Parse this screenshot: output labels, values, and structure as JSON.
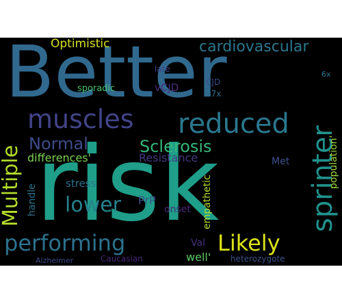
{
  "colors": {
    "background": "#000000",
    "page": "#ffffff"
  },
  "words": {
    "better": {
      "text": "Better",
      "color": "#31698e"
    },
    "risk": {
      "text": "risk",
      "color": "#1f9e89"
    },
    "optimistic": {
      "text": "Optimistic",
      "color": "#d5e21a"
    },
    "cardiovascular": {
      "text": "cardiovascular",
      "color": "#2a778e"
    },
    "muscles": {
      "text": "muscles",
      "color": "#414487"
    },
    "reduced": {
      "text": "reduced",
      "color": "#2a778e"
    },
    "sprinter": {
      "text": "sprinter",
      "color": "#21918c"
    },
    "multiple": {
      "text": "Multiple",
      "color": "#b5de2b"
    },
    "normal": {
      "text": "Normal",
      "color": "#3e4c8a"
    },
    "sclerosis": {
      "text": "Sclerosis",
      "color": "#35b779"
    },
    "differences": {
      "text": "differences'",
      "color": "#7ad151"
    },
    "resistance": {
      "text": "Resistance",
      "color": "#443983"
    },
    "met": {
      "text": "Met",
      "color": "#3b528b"
    },
    "population": {
      "text": "population'",
      "color": "#a2da37"
    },
    "lower": {
      "text": "lower",
      "color": "#26828e"
    },
    "stress": {
      "text": "stress",
      "color": "#2c728e"
    },
    "handle": {
      "text": "handle",
      "color": "#2c728e"
    },
    "prp": {
      "text": "PrP",
      "color": "#3b528b"
    },
    "onset": {
      "text": "onset",
      "color": "#482878"
    },
    "empathetic": {
      "text": "empathetic",
      "color": "#b5de2b"
    },
    "performing": {
      "text": "performing",
      "color": "#2c728e"
    },
    "likely": {
      "text": "Likely",
      "color": "#dde318"
    },
    "val": {
      "text": "Val",
      "color": "#46337f"
    },
    "well": {
      "text": "well'",
      "color": "#5ec962"
    },
    "alzheimer": {
      "text": "Alzheimer",
      "color": "#3e4989"
    },
    "caucasian": {
      "text": "Caucasian",
      "color": "#482878"
    },
    "heterozygote": {
      "text": "heterozygote",
      "color": "#3b528b"
    },
    "late": {
      "text": "late",
      "color": "#414487"
    },
    "sporadic": {
      "text": "sporadic",
      "color": "#4ac16d"
    },
    "vcjd": {
      "text": "vCJD",
      "color": "#472d7b"
    },
    "cjd": {
      "text": "CJD",
      "color": "#3e4989"
    },
    "x87": {
      "text": "87x",
      "color": "#2d708e"
    },
    "x6": {
      "text": "6x",
      "color": "#2a788e"
    }
  }
}
